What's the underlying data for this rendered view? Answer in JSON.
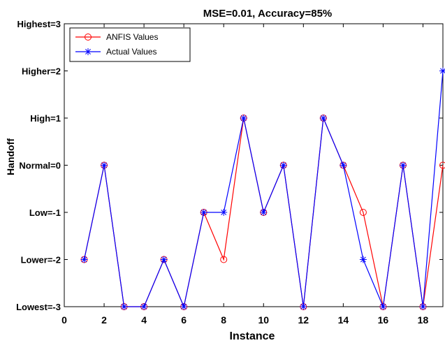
{
  "chart_data": {
    "type": "line",
    "title": "MSE=0.01, Accuracy=85%",
    "xlabel": "Instance",
    "ylabel": "Handoff",
    "xlim": [
      0,
      19
    ],
    "ylim": [
      -3,
      3
    ],
    "x_ticks": [
      0,
      2,
      4,
      6,
      8,
      10,
      12,
      14,
      16,
      18
    ],
    "x_tick_labels": [
      "0",
      "2",
      "4",
      "6",
      "8",
      "10",
      "12",
      "14",
      "16",
      "18"
    ],
    "y_ticks": [
      -3,
      -2,
      -1,
      0,
      1,
      2,
      3
    ],
    "y_tick_labels": [
      "Lowest=-3",
      "Lower=-2",
      "Low=-1",
      "Normal=0",
      "High=1",
      "Higher=2",
      "Highest=3"
    ],
    "legend_position": "top-left",
    "grid": false,
    "x": [
      1,
      2,
      3,
      4,
      5,
      6,
      7,
      8,
      9,
      10,
      11,
      12,
      13,
      14,
      15,
      16,
      17,
      18,
      19
    ],
    "series": [
      {
        "name": "ANFIS Values",
        "color": "#ff0000",
        "marker": "circle",
        "values": [
          -2,
          0,
          -3,
          -3,
          -2,
          -3,
          -1,
          -2,
          1,
          -1,
          0,
          -3,
          1,
          0,
          -1,
          -3,
          0,
          -3,
          0
        ]
      },
      {
        "name": "Actual Values",
        "color": "#0000ff",
        "marker": "asterisk",
        "values": [
          -2,
          0,
          -3,
          -3,
          -2,
          -3,
          -1,
          -1,
          1,
          -1,
          0,
          -3,
          1,
          0,
          -2,
          -3,
          0,
          -3,
          2
        ]
      }
    ]
  }
}
